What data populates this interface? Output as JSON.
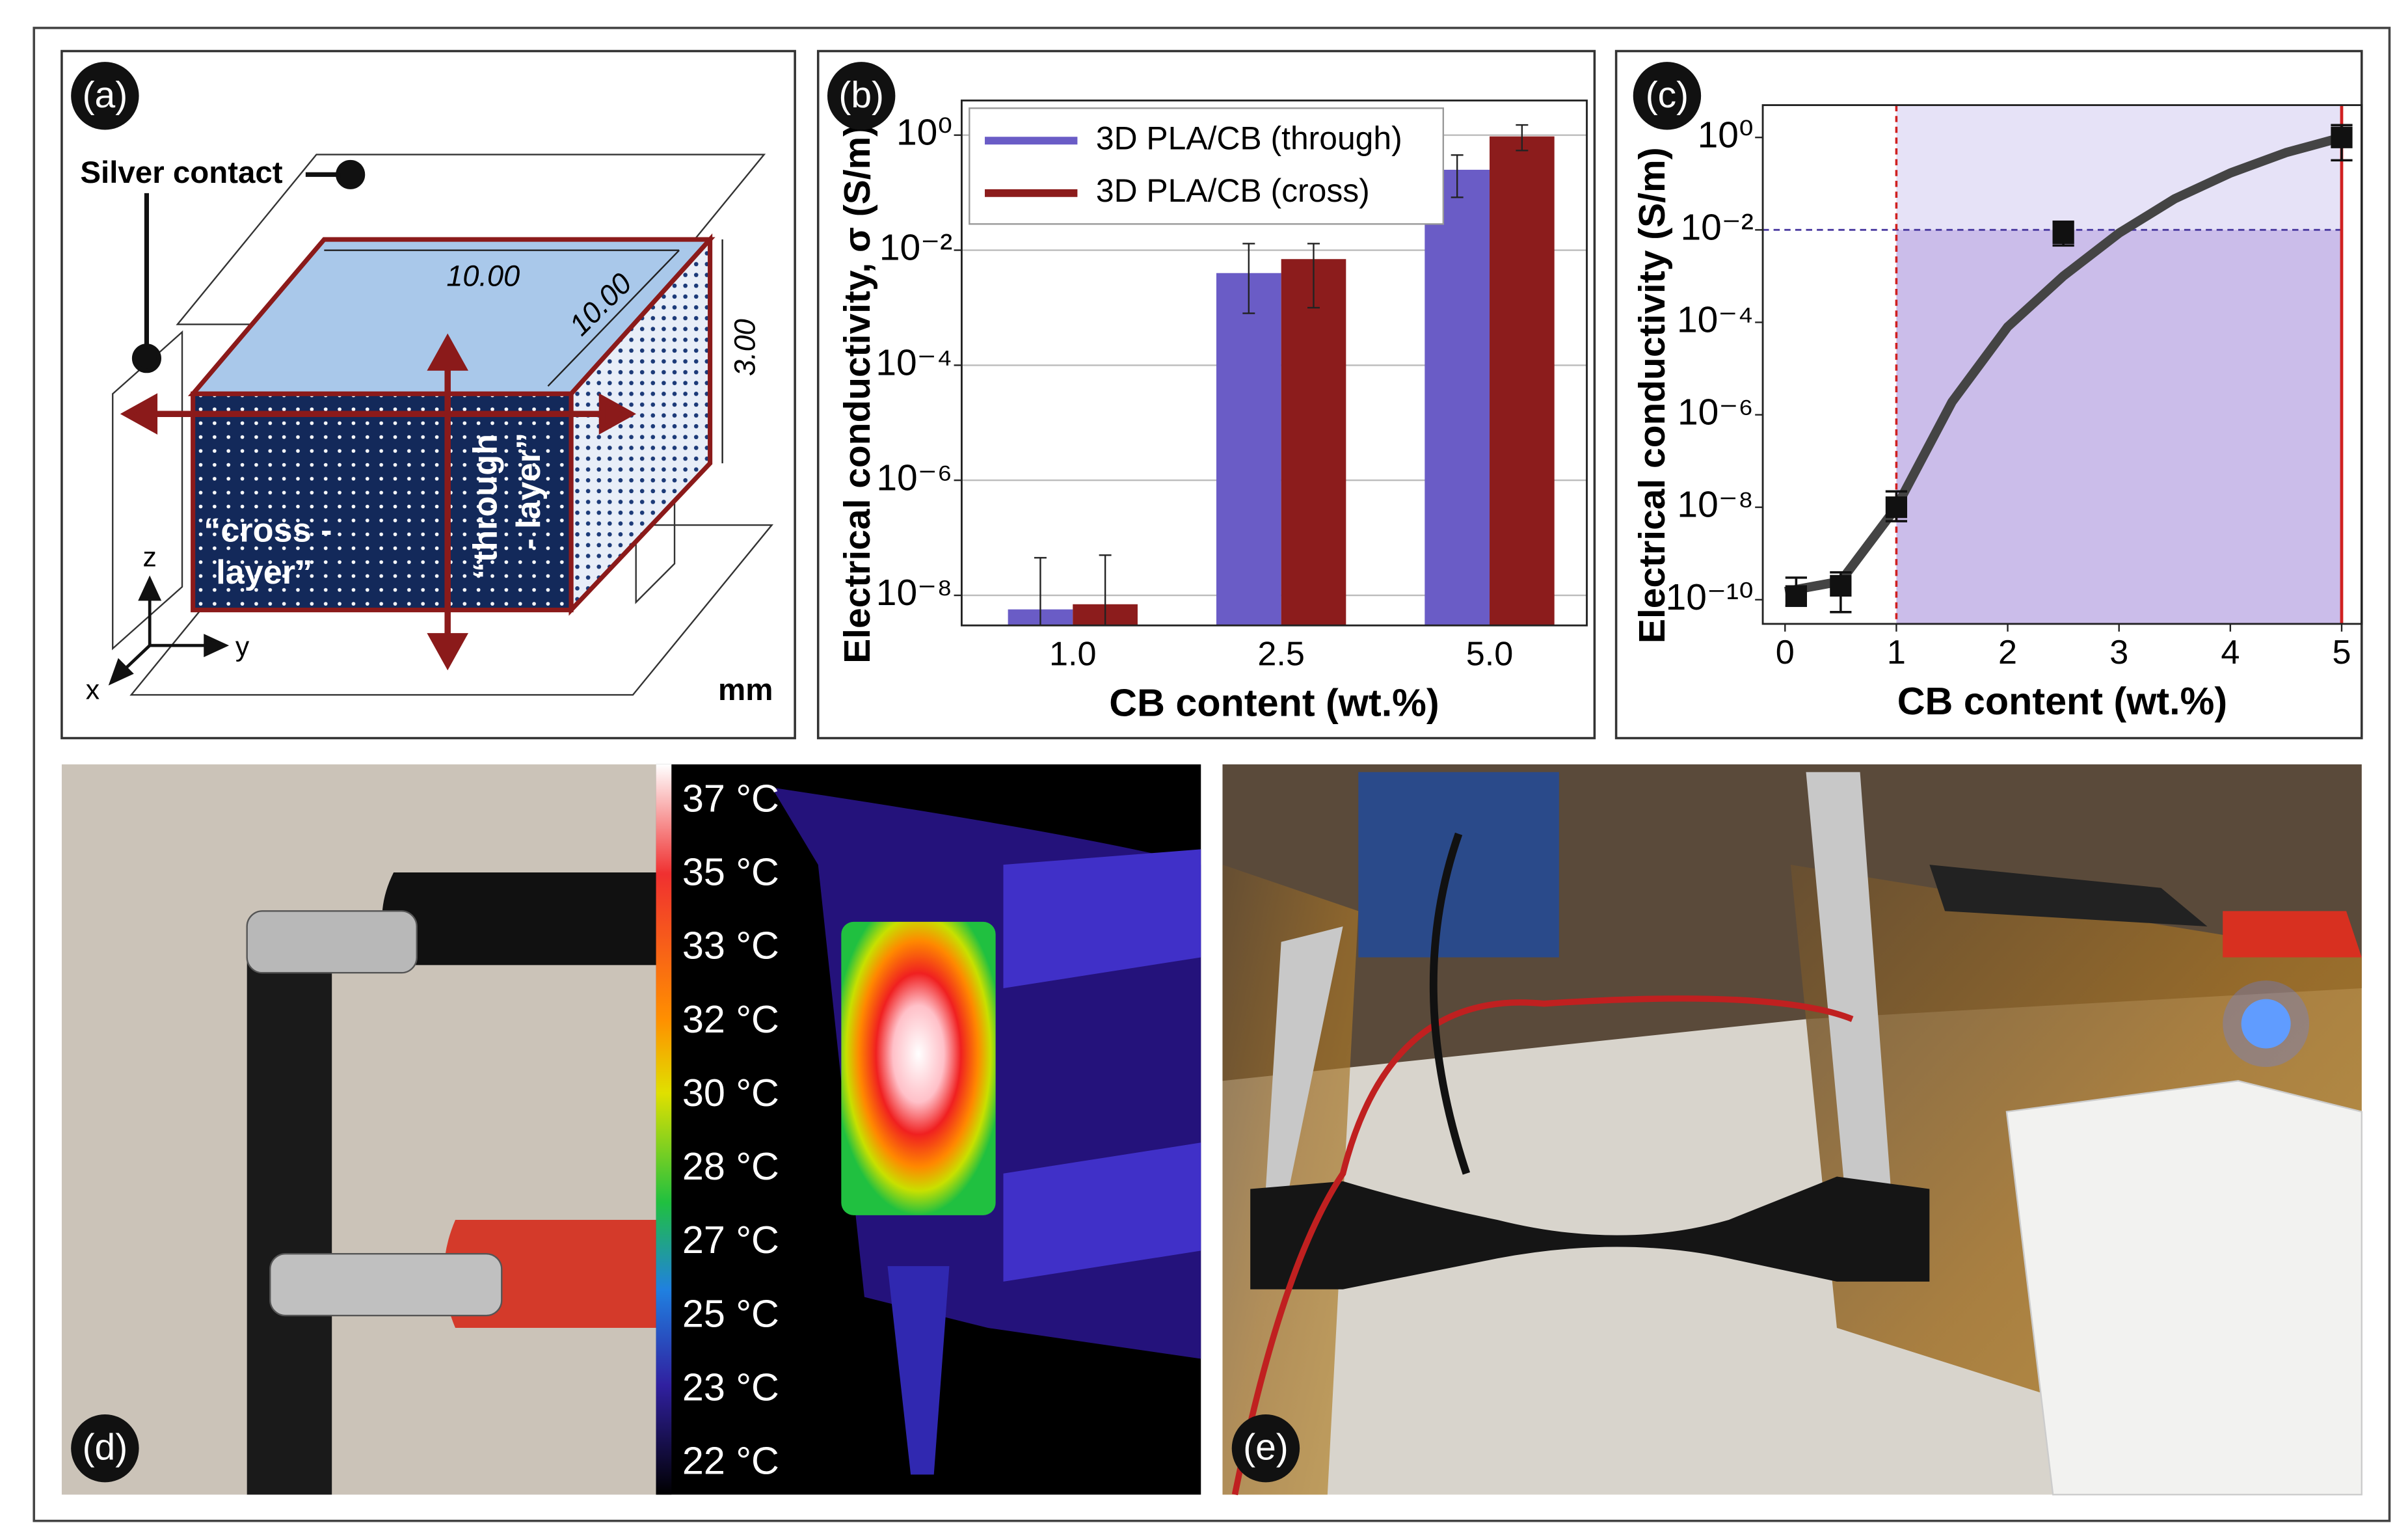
{
  "figure": {
    "panel_a": {
      "label": "(a)",
      "silver_contact": "Silver contact",
      "length": "10.00",
      "width": "10.00",
      "height": "3.00",
      "cross_layer": [
        "“cross -",
        "layer”"
      ],
      "through_layer": [
        "“through",
        "- layer”"
      ],
      "axes": [
        "z",
        "y",
        "x"
      ],
      "unit": "mm"
    },
    "panel_d": {
      "label": "(d)",
      "temperature_scale": [
        "37 °C",
        "35 °C",
        "33 °C",
        "32 °C",
        "30 °C",
        "28 °C",
        "27 °C",
        "25 °C",
        "23 °C",
        "22 °C"
      ]
    },
    "panel_e": {
      "label": "(e)"
    }
  },
  "chart_data": [
    {
      "type": "bar",
      "panel_label": "(b)",
      "xlabel": "CB content (wt.%)",
      "ylabel": "Electrical conductivity, σ (S/m)",
      "categories": [
        "1.0",
        "2.5",
        "5.0"
      ],
      "log_y": true,
      "ylim": [
        3e-09,
        4
      ],
      "yticks": [
        {
          "value": 1e-08,
          "label": "10⁻⁸"
        },
        {
          "value": 1e-06,
          "label": "10⁻⁶"
        },
        {
          "value": 0.0001,
          "label": "10⁻⁴"
        },
        {
          "value": 0.01,
          "label": "10⁻²"
        },
        {
          "value": 1,
          "label": "10⁰"
        }
      ],
      "grid": true,
      "legend": "upper left",
      "series": [
        {
          "name": "3D PLA/CB (through)",
          "color": "#6a5cc6",
          "values": [
            5.7e-09,
            0.004,
            0.25
          ],
          "error_low": [
            1e-10,
            0.0008,
            0.083
          ],
          "error_high": [
            4.5e-08,
            0.013,
            0.45
          ]
        },
        {
          "name": "3D PLA/CB (cross)",
          "color": "#8c1c1c",
          "values": [
            7e-09,
            0.007,
            0.95
          ],
          "error_low": [
            1e-10,
            0.001,
            0.54
          ],
          "error_high": [
            5e-08,
            0.013,
            1.5
          ]
        }
      ]
    },
    {
      "type": "scatter",
      "panel_label": "(c)",
      "xlabel": "CB content (wt.%)",
      "ylabel": "Electrical conductivity (S/m)",
      "log_y": true,
      "xlim": [
        -0.2,
        5.18
      ],
      "xticks": [
        0,
        1,
        2,
        3,
        4,
        5
      ],
      "ylim": [
        3e-11,
        5
      ],
      "yticks": [
        {
          "value": 1e-10,
          "label": "10⁻¹⁰"
        },
        {
          "value": 1e-08,
          "label": "10⁻⁸"
        },
        {
          "value": 1e-06,
          "label": "10⁻⁶"
        },
        {
          "value": 0.0001,
          "label": "10⁻⁴"
        },
        {
          "value": 0.01,
          "label": "10⁻²"
        },
        {
          "value": 1,
          "label": "10⁰"
        }
      ],
      "color": "#111111",
      "series": [
        {
          "x": [
            0.1,
            0.5,
            1,
            2.5,
            5
          ],
          "values": [
            1.2e-10,
            2e-10,
            1e-08,
            0.0085,
            1
          ],
          "error_low": [
            7.4e-11,
            5.4e-11,
            5e-09,
            0.0046,
            0.32
          ],
          "error_high": [
            3e-10,
            3.9e-10,
            2.2e-08,
            0.015,
            1.85
          ]
        }
      ],
      "fit": {
        "color": "#444444",
        "x": [
          0,
          0.5,
          1,
          1.5,
          2,
          2.5,
          3,
          3.5,
          4,
          4.5,
          5
        ],
        "values": [
          1.5e-10,
          2.5e-10,
          1e-08,
          1.9e-06,
          8e-05,
          0.001,
          0.0085,
          0.047,
          0.17,
          0.47,
          1
        ]
      },
      "percolation_x": 1,
      "reference_y": 0.01,
      "max_x": 5,
      "shade_colors": [
        "#e6e2f7",
        "#cbbdea"
      ]
    }
  ]
}
